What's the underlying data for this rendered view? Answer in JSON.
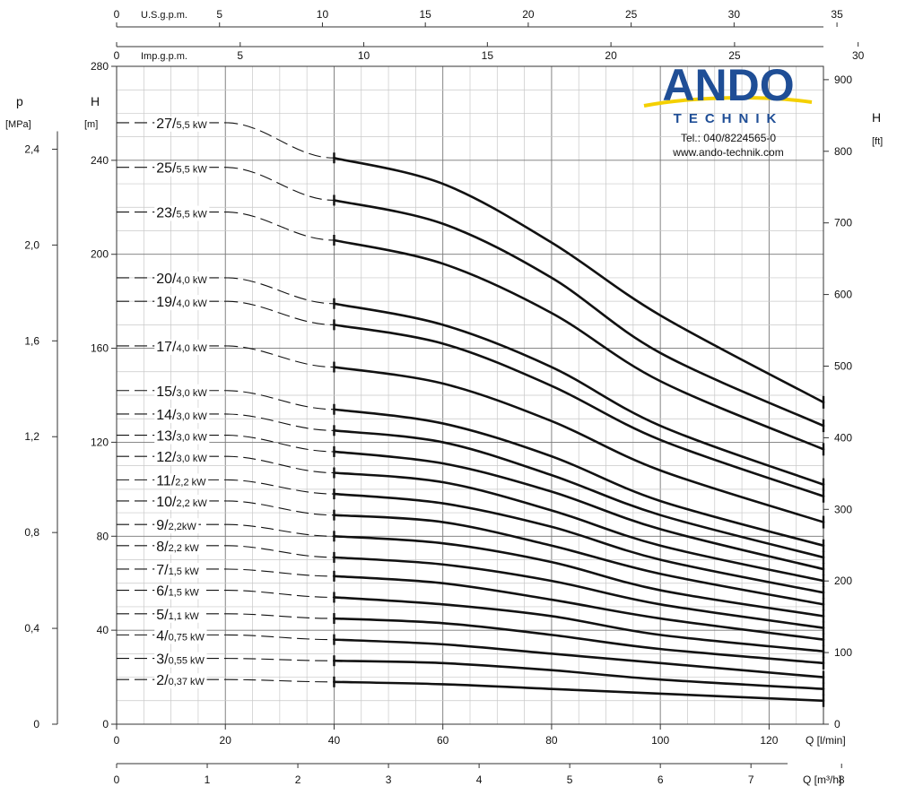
{
  "chart_data": {
    "type": "line",
    "title": "",
    "xlabel": "Q [l/min]",
    "ylabel": "H [m]",
    "x_unit_bottom2": "Q [m³/h]",
    "xlim": [
      0,
      130
    ],
    "ylim": [
      0,
      280
    ],
    "x_ticks": [
      0,
      20,
      40,
      60,
      80,
      100,
      120
    ],
    "y_ticks": [
      0,
      40,
      80,
      120,
      160,
      200,
      240,
      280
    ],
    "grid": true,
    "axis_left_pressure": {
      "label": "p",
      "unit": "[MPa]",
      "ticks": [
        "0",
        "0,4",
        "0,8",
        "1,2",
        "1,6",
        "2,0",
        "2,4"
      ],
      "values": [
        0,
        0.4,
        0.8,
        1.2,
        1.6,
        2.0,
        2.4
      ]
    },
    "axis_left_head": {
      "label": "H",
      "unit": "[m]"
    },
    "axis_right_feet": {
      "label": "H",
      "unit": "[ft]",
      "ticks": [
        "0",
        "100",
        "200",
        "300",
        "400",
        "500",
        "600",
        "700",
        "800",
        "900"
      ],
      "values": [
        0,
        100,
        200,
        300,
        400,
        500,
        600,
        700,
        800,
        900
      ]
    },
    "axis_top_usgpm": {
      "label": "U.S.g.p.m.",
      "ticks": [
        "0",
        "5",
        "10",
        "15",
        "20",
        "25",
        "30",
        "35"
      ],
      "values": [
        0,
        5,
        10,
        15,
        20,
        25,
        30,
        35
      ]
    },
    "axis_top_impgpm": {
      "label": "Imp.g.p.m.",
      "ticks": [
        "0",
        "5",
        "10",
        "15",
        "20",
        "25",
        "30"
      ],
      "values": [
        0,
        5,
        10,
        15,
        20,
        25,
        30
      ]
    },
    "axis_bottom_m3h": {
      "ticks": [
        "0",
        "1",
        "2",
        "3",
        "4",
        "5",
        "6",
        "7",
        "8"
      ],
      "values": [
        0,
        1,
        2,
        3,
        4,
        5,
        6,
        7,
        8
      ]
    },
    "series": [
      {
        "stages": "27",
        "power": "5,5 kW",
        "H0": 256,
        "y": [
          241,
          230,
          205,
          174,
          137
        ]
      },
      {
        "stages": "25",
        "power": "5,5 kW",
        "H0": 237,
        "y": [
          223,
          213,
          190,
          158,
          127
        ]
      },
      {
        "stages": "23",
        "power": "5,5 kW",
        "H0": 218,
        "y": [
          206,
          196,
          175,
          146,
          117
        ]
      },
      {
        "stages": "20",
        "power": "4,0 kW",
        "H0": 190,
        "y": [
          179,
          170,
          152,
          127,
          102
        ]
      },
      {
        "stages": "19",
        "power": "4,0 kW",
        "H0": 180,
        "y": [
          170,
          162,
          144,
          121,
          97
        ]
      },
      {
        "stages": "17",
        "power": "4,0 kW",
        "H0": 161,
        "y": [
          152,
          145,
          129,
          108,
          86
        ]
      },
      {
        "stages": "15",
        "power": "3,0 kW",
        "H0": 142,
        "y": [
          134,
          128,
          114,
          95,
          76
        ]
      },
      {
        "stages": "14",
        "power": "3,0 kW",
        "H0": 132,
        "y": [
          125,
          120,
          106,
          89,
          71
        ]
      },
      {
        "stages": "13",
        "power": "3,0 kW",
        "H0": 123,
        "y": [
          116,
          111,
          99,
          83,
          66
        ]
      },
      {
        "stages": "12",
        "power": "3,0 kW",
        "H0": 114,
        "y": [
          107,
          103,
          91,
          76,
          61
        ]
      },
      {
        "stages": "11",
        "power": "2,2 kW",
        "H0": 104,
        "y": [
          98,
          94,
          84,
          70,
          56
        ]
      },
      {
        "stages": "10",
        "power": "2,2 kW",
        "H0": 95,
        "y": [
          89,
          86,
          76,
          64,
          51
        ]
      },
      {
        "stages": "9",
        "power": "2,2kW",
        "H0": 85,
        "y": [
          80,
          77,
          69,
          57,
          46
        ]
      },
      {
        "stages": "8",
        "power": "2,2 kW",
        "H0": 76,
        "y": [
          71,
          68,
          61,
          51,
          41
        ]
      },
      {
        "stages": "7",
        "power": "1,5 kW",
        "H0": 66,
        "y": [
          63,
          60,
          53,
          45,
          36
        ]
      },
      {
        "stages": "6",
        "power": "1,5 kW",
        "H0": 57,
        "y": [
          54,
          51,
          46,
          38,
          31
        ]
      },
      {
        "stages": "5",
        "power": "1,1 kW",
        "H0": 47,
        "y": [
          45,
          43,
          38,
          32,
          26
        ]
      },
      {
        "stages": "4",
        "power": "0,75 kW",
        "H0": 38,
        "y": [
          36,
          34,
          30,
          26,
          20
        ]
      },
      {
        "stages": "3",
        "power": "0,55 kW",
        "H0": 28,
        "y": [
          27,
          26,
          23,
          19,
          15
        ]
      },
      {
        "stages": "2",
        "power": "0,37 kW",
        "H0": 19,
        "y": [
          18,
          17,
          15,
          13,
          10
        ]
      }
    ],
    "x_points": [
      40,
      60,
      80,
      100,
      130
    ],
    "label_x": 20
  },
  "logo": {
    "name": "ANDO",
    "subtitle": "TECHNIK",
    "phone": "Tel.: 040/8224565-0",
    "url": "www.ando-technik.com",
    "brand_color": "#1f4e96",
    "swoosh_color": "#f4d000"
  }
}
